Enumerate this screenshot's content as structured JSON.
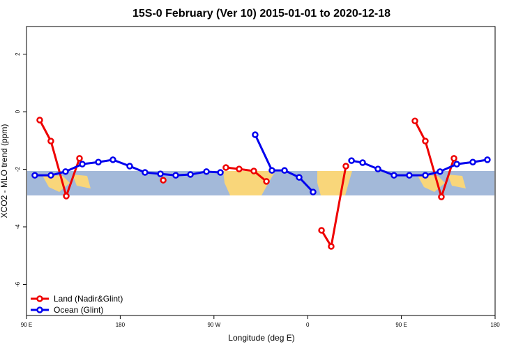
{
  "chart_data": {
    "type": "line",
    "title": "15S-0 February (Ver 10)   2015-01-01 to 2020-12-18",
    "x_label": "Longitude (deg E)",
    "y_label": "XCO2 - MLO trend (ppm)",
    "xlim": [
      90,
      540
    ],
    "xticks": [
      {
        "value": 90,
        "label": "90 E"
      },
      180,
      {
        "value": 270,
        "label": "90 W"
      },
      {
        "value": 360,
        "label": "0"
      },
      {
        "value": 450,
        "label": "90 E"
      },
      {
        "value": 540,
        "label": "180"
      }
    ],
    "ylim": [
      -7.08,
      2.96
    ],
    "yticks": [
      2,
      0,
      -2,
      -4,
      -6
    ],
    "legend": "bottom-left",
    "series": [
      {
        "name": "Land (Nadir&Glint)",
        "color": "#ee0000",
        "x": [
          102.7,
          113.4,
          128.2,
          140.9,
          null,
          221.3,
          null,
          281.5,
          294.2,
          308.3,
          320.4,
          null,
          373.3,
          382.6,
          396.7,
          null,
          463.0,
          473.0,
          488.4,
          500.5
        ],
        "values": [
          -0.29,
          -1.02,
          -2.93,
          -1.62,
          null,
          -2.38,
          null,
          -1.94,
          -1.99,
          -2.06,
          -2.42,
          null,
          -4.12,
          -4.68,
          -1.89,
          null,
          -0.32,
          -1.02,
          -2.96,
          -1.62
        ]
      },
      {
        "name": "Ocean (Glint)",
        "color": "#0000ee",
        "x": [
          98.0,
          113.4,
          127.5,
          143.6,
          159.0,
          173.0,
          189.1,
          203.8,
          218.6,
          233.3,
          247.4,
          262.8,
          276.2,
          null,
          309.6,
          325.7,
          337.8,
          351.8,
          365.2,
          null,
          402.1,
          412.8,
          427.5,
          442.9,
          457.6,
          473.0,
          487.1,
          503.2,
          518.6,
          532.6
        ],
        "values": [
          -2.21,
          -2.21,
          -2.08,
          -1.82,
          -1.75,
          -1.67,
          -1.89,
          -2.11,
          -2.16,
          -2.21,
          -2.18,
          -2.08,
          -2.11,
          null,
          -0.8,
          -2.04,
          -2.04,
          -2.28,
          -2.79,
          null,
          -1.7,
          -1.77,
          -1.99,
          -2.21,
          -2.21,
          -2.21,
          -2.08,
          -1.82,
          -1.75,
          -1.67
        ]
      }
    ]
  }
}
